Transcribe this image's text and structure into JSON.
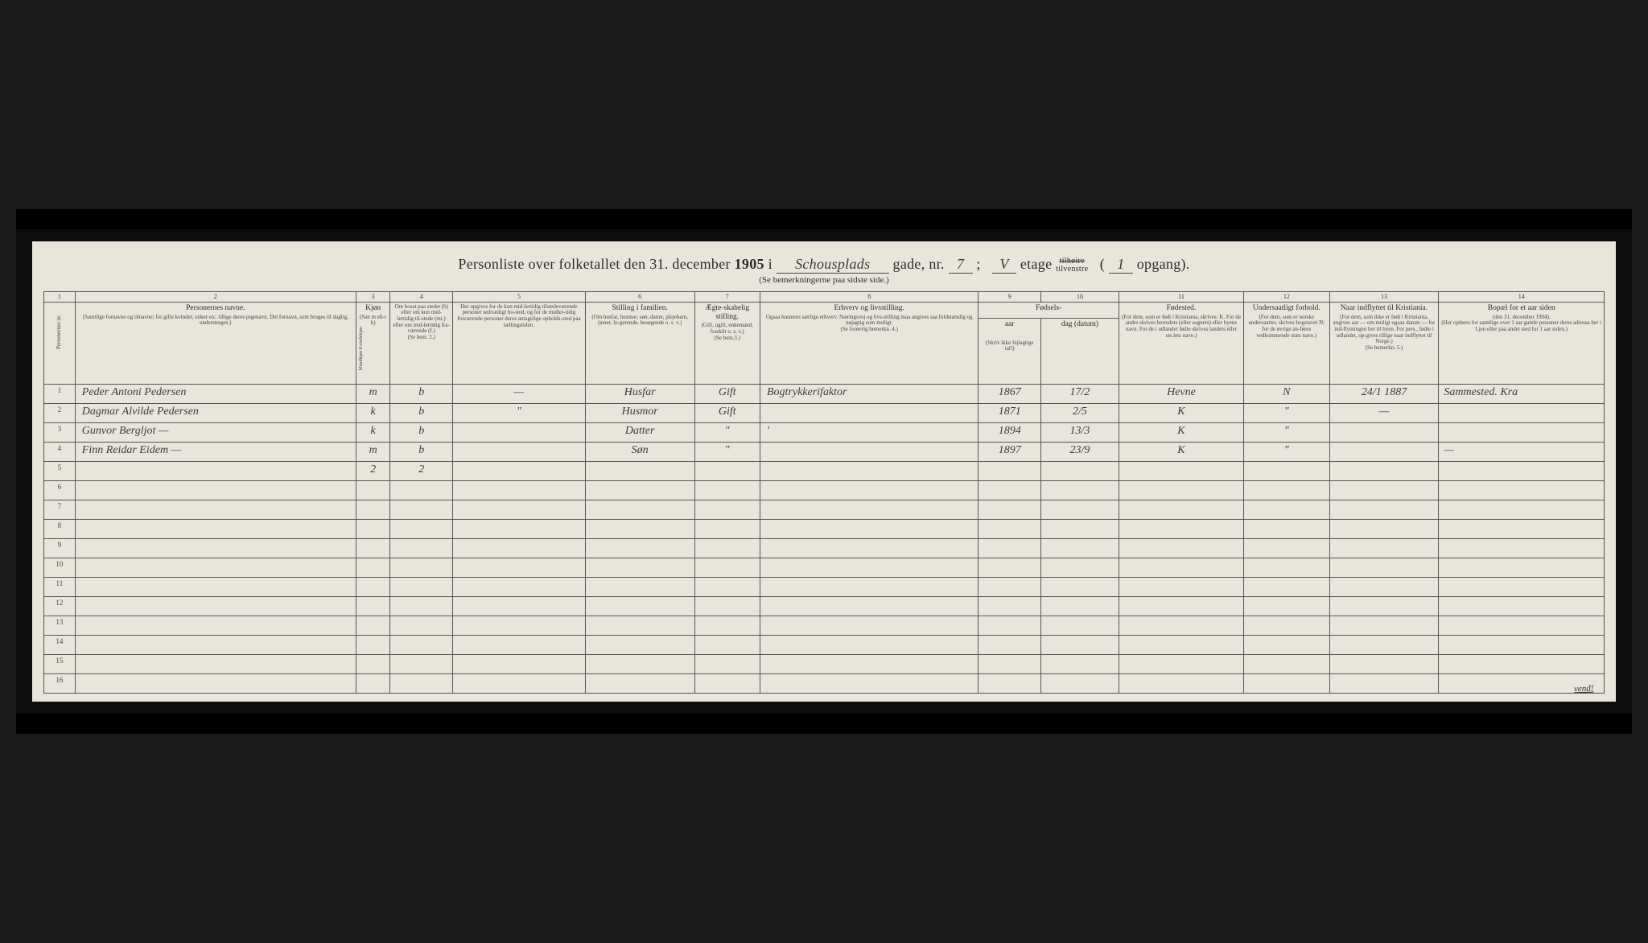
{
  "title": {
    "prefix": "Personliste over folketallet den 31. december",
    "year": "1905",
    "i": "i",
    "street_hw": "Schousplads",
    "gade_nr": "gade, nr.",
    "nr_hw": "7",
    "semi": ";",
    "etage_hw": "V",
    "etage": "etage",
    "tilhoire_strike": "tilhøire",
    "tilvenstre": "tilvenstre",
    "opgang_hw": "1",
    "opgang": "opgang).",
    "paren": "("
  },
  "subtitle": "(Se bemerkningerne paa sidste side.)",
  "colnums": [
    "1",
    "2",
    "3",
    "4",
    "5",
    "6",
    "7",
    "8",
    "9",
    "10",
    "11",
    "12",
    "13",
    "14"
  ],
  "headers": {
    "c1": "Personernes nr.",
    "c2_main": "Personernes navne.",
    "c2_sub": "(Samtlige fornavne og tilnavne; for gifte kvinder, enker etc. tillige deres pigenavn. Det fornavn, som bruges til daglig, understreges.)",
    "c3_main": "Kjøn",
    "c3_sub": "(Sæt m ell-r k)",
    "c3_sub2": "Mandkjøn  Kvindekjøn",
    "c4_main": "Om bosat paa stedet (b) eller om kun mid-lertidig til-stede (mt.) eller om mid-lertidig fra-værende (f.)",
    "c4_sub": "(Se bem. 2.)",
    "c5_main": "Her opgives for de kun mid-lertidig tilstedeværende personer sedvanligt bo-sted, og for de midler-tidig fraværende personer deres antagelige opholds-sted paa tællingstiden.",
    "c6_main": "Stilling i familien.",
    "c6_sub": "(Om husfar, husmor, søn, datter, plejebarn, tjener, lo-gerende, besøgende o. s. v.)",
    "c7_main": "Ægte-skabelig stilling.",
    "c7_sub": "(Gift, ugift, enkemand, fraskilt o. s. v.)",
    "c7_sub2": "(Se bem.3.)",
    "c8_main": "Erhverv og livsstilling.",
    "c8_sub": "Ogsaa husmors særlige erhverv. Næringsvej og livs-stilling maa angives saa fuldstændig og nøjagtig som muligt.",
    "c8_sub2": "(Se forøvrig bemerkn. 4.)",
    "c9_10_main": "Fødsels-",
    "c9": "aar",
    "c10": "dag (datum)",
    "c9_10_sub": "(Skriv ikke fejlagtige tal!)",
    "c11_main": "Fødested.",
    "c11_sub": "(For dem, som er født i Kristiania, skrives: K. For de andre skrives herredets (eller sognets) eller byens navn. For de i udlandet fødte skrives landets eller ste.lets navn.)",
    "c12_main": "Undersaatligt forhold.",
    "c12_sub": "(For dem, som er norske undersaatter, skrives bogstavet N; for de øvrige an-føres vedkommende stats navn.)",
    "c13_main": "Naar indflyttet til Kristiania.",
    "c13_sub": "(For dem, som ikke er født i Kristiania, angives aar — om muligt ogsaa datum — for ind-flytningen her til byen. For pers., fødte i udlandet, op-gives tillige naar indflyttet til Norge.)",
    "c13_sub2": "(Se bemerkn. 5.)",
    "c14_main": "Bopæl for et aar siden",
    "c14_sub": "(den 31. december 1904).",
    "c14_sub2": "(Her opføres for samtlige over 1 aar gamle personer deres adressa her i Ljen eller paa andet sted for 1 aar siden.)"
  },
  "rows": [
    {
      "n": "1",
      "name": "Peder Antoni Pedersen",
      "kjon": "m",
      "bosat": "b",
      "opg": "—",
      "stilling": "Husfar",
      "aegte": "Gift",
      "erhverv": "Bogtrykkerifaktor",
      "aar": "1867",
      "dag": "17/2",
      "fodested": "Hevne",
      "under": "N",
      "indfl": "24/1 1887",
      "bopael": "Sammested. Kra"
    },
    {
      "n": "2",
      "name": "Dagmar Alvilde Pedersen",
      "kjon": "k",
      "bosat": "b",
      "opg": "\"",
      "stilling": "Husmor",
      "aegte": "Gift",
      "erhverv": "",
      "aar": "1871",
      "dag": "2/5",
      "fodested": "K",
      "under": "\"",
      "indfl": "—",
      "bopael": ""
    },
    {
      "n": "3",
      "name": "Gunvor Bergljot    —",
      "kjon": "k",
      "bosat": "b",
      "opg": "",
      "stilling": "Datter",
      "aegte": "\"",
      "erhverv": "'",
      "aar": "1894",
      "dag": "13/3",
      "fodested": "K",
      "under": "\"",
      "indfl": "",
      "bopael": ""
    },
    {
      "n": "4",
      "name": "Finn Reidar Eidem  —",
      "kjon": "m",
      "bosat": "b",
      "opg": "",
      "stilling": "Søn",
      "aegte": "\"",
      "erhverv": "",
      "aar": "1897",
      "dag": "23/9",
      "fodested": "K",
      "under": "\"",
      "indfl": "",
      "bopael": "—"
    },
    {
      "n": "5",
      "name": "",
      "kjon": "2",
      "bosat": "2",
      "opg": "",
      "stilling": "",
      "aegte": "",
      "erhverv": "",
      "aar": "",
      "dag": "",
      "fodested": "",
      "under": "",
      "indfl": "",
      "bopael": ""
    }
  ],
  "empty_rows": [
    "6",
    "7",
    "8",
    "9",
    "10",
    "11",
    "12",
    "13",
    "14",
    "15",
    "16"
  ],
  "vend": "vend!"
}
